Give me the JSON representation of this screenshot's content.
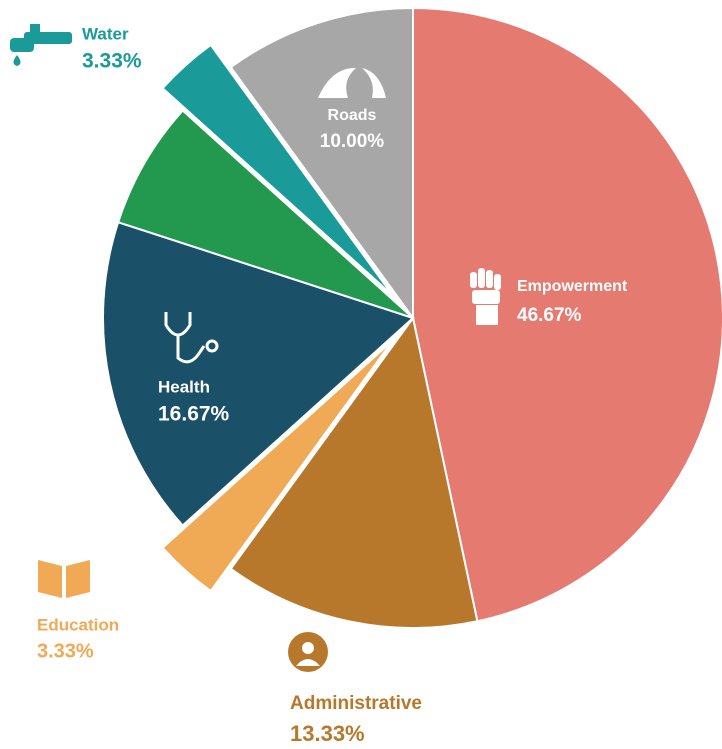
{
  "chart_data": {
    "type": "pie",
    "categories": [
      "Empowerment",
      "Administrative",
      "Education",
      "Health",
      null,
      "Water",
      "Roads"
    ],
    "values": [
      46.67,
      13.33,
      3.33,
      16.67,
      6.67,
      3.33,
      10.0
    ],
    "value_labels": [
      "46.67%",
      "13.33%",
      "3.33%",
      "16.67%",
      null,
      "3.33%",
      "10.00%"
    ],
    "colors": [
      "#e57a71",
      "#b8782c",
      "#f0a955",
      "#1a5068",
      "#22994f",
      "#1a9a98",
      "#a7a7a7"
    ],
    "exploded": [
      false,
      false,
      true,
      false,
      false,
      true,
      false
    ],
    "start_angle": 0,
    "direction": "clockwise"
  }
}
